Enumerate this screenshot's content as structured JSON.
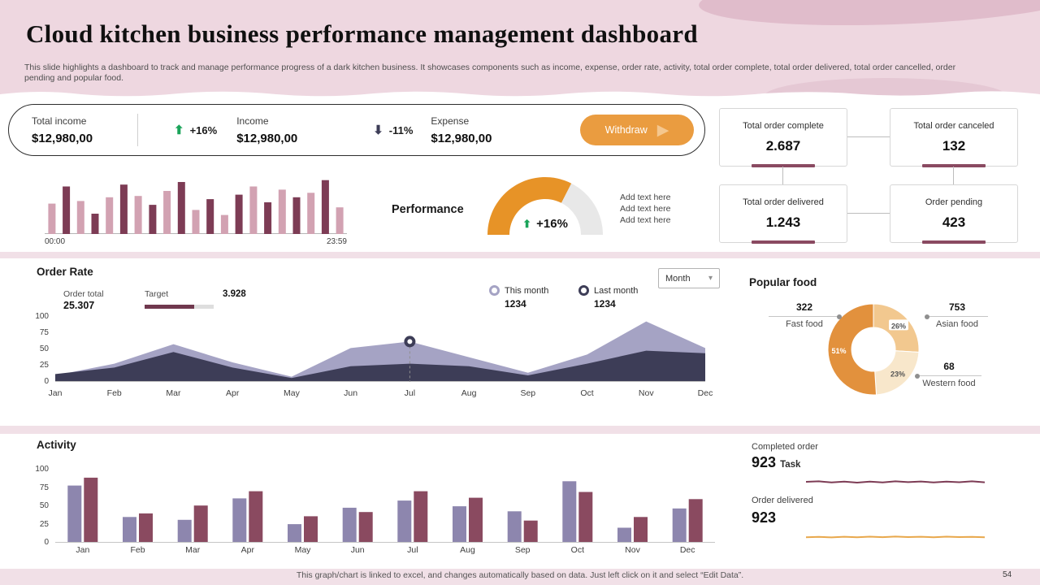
{
  "page": {
    "title": "Cloud kitchen business performance management dashboard",
    "subtitle": "This slide highlights a dashboard to track and manage performance progress of a dark kitchen business. It showcases components such as income, expense, order rate, activity, total order complete, total order delivered, total order cancelled, order pending and popular food.",
    "footer_note": "This graph/chart is linked to excel, and changes automatically based on data. Just left click on it and select “Edit Data”.",
    "page_number": "54"
  },
  "colors": {
    "bg_pink": "#f1e0e7",
    "accent_maroon": "#8a4a61",
    "accent_orange": "#ea9c40",
    "accent_green": "#1ba45a",
    "accent_navy": "#3d3d57",
    "accent_lavender": "#a5a3c4",
    "accent_purple": "#8d86ae"
  },
  "income_bar": {
    "total_income_label": "Total income",
    "total_income_value": "$12,980,00",
    "income_change": "+16%",
    "income_label": "Income",
    "income_value": "$12,980,00",
    "expense_change": "-11%",
    "expense_label": "Expense",
    "expense_value": "$12,980,00",
    "withdraw_label": "Withdraw"
  },
  "performance": {
    "add_text": [
      "Add text here",
      "Add text here",
      "Add text here"
    ]
  },
  "order_cards": [
    {
      "label": "Total order complete",
      "value": "2.687"
    },
    {
      "label": "Total order canceled",
      "value": "132"
    },
    {
      "label": "Total order delivered",
      "value": "1.243"
    },
    {
      "label": "Order pending",
      "value": "423"
    }
  ],
  "order_rate": {
    "title": "Order Rate",
    "order_total_label": "Order total",
    "order_total_value": "25.307",
    "target_label": "Target",
    "target_value": "3.928",
    "target_progress_pct": 72,
    "legend": [
      {
        "label": "This month",
        "value": "1234"
      },
      {
        "label": "Last month",
        "value": "1234"
      }
    ],
    "dropdown_value": "Month"
  },
  "popular_food": {
    "title": "Popular food",
    "callouts": [
      {
        "value": "322",
        "label": "Fast food"
      },
      {
        "value": "753",
        "label": "Asian food"
      },
      {
        "value": "68",
        "label": "Western food"
      }
    ]
  },
  "activity": {
    "title": "Activity",
    "completed_label": "Completed order",
    "completed_value": "923",
    "completed_unit": "Task",
    "delivered_label": "Order delivered",
    "delivered_value": "923"
  },
  "chart_data": [
    {
      "id": "hourly_sales",
      "type": "bar",
      "x_range": [
        "00:00",
        "23:59"
      ],
      "ylim": [
        0,
        100
      ],
      "values": [
        48,
        75,
        52,
        32,
        58,
        78,
        60,
        46,
        68,
        82,
        38,
        55,
        30,
        62,
        75,
        50,
        70,
        58,
        65,
        85,
        42
      ],
      "bar_colors": [
        "#d2a2b2",
        "#7d3c55"
      ]
    },
    {
      "id": "performance_gauge",
      "type": "gauge",
      "label": "Performance",
      "value_display": "+16%",
      "fill_fraction": 0.65,
      "fill_color": "#e79327",
      "track_color": "#e8e8e8"
    },
    {
      "id": "order_rate",
      "type": "area",
      "x": [
        "Jan",
        "Feb",
        "Mar",
        "Apr",
        "May",
        "Jun",
        "Jul",
        "Aug",
        "Sep",
        "Oct",
        "Nov",
        "Dec"
      ],
      "ylim": [
        0,
        100
      ],
      "yticks": [
        100,
        75,
        50,
        25,
        0
      ],
      "series": [
        {
          "name": "This month",
          "color": "#a5a3c4",
          "values": [
            10,
            28,
            58,
            30,
            8,
            52,
            62,
            38,
            14,
            42,
            93,
            52
          ]
        },
        {
          "name": "Last month",
          "color": "#3d3d57",
          "values": [
            12,
            22,
            46,
            22,
            6,
            24,
            28,
            24,
            10,
            28,
            48,
            44
          ]
        }
      ],
      "marker": {
        "x_index": 6,
        "value": 62
      }
    },
    {
      "id": "popular_food",
      "type": "pie",
      "title": "Popular food",
      "slices": [
        {
          "label": "Asian food",
          "value": 753,
          "pct": 26,
          "color": "#f2c88f",
          "pct_text_color": "#555555",
          "chip": true
        },
        {
          "label": "Western food",
          "value": 68,
          "pct": 23,
          "color": "#f8e7cb",
          "pct_text_color": "#555555",
          "chip": false
        },
        {
          "label": "Fast food",
          "value": 322,
          "pct": 51,
          "color": "#e2913d",
          "pct_text_color": "#ffffff",
          "chip": false
        }
      ]
    },
    {
      "id": "activity",
      "type": "bar",
      "categories": [
        "Jan",
        "Feb",
        "Mar",
        "Apr",
        "May",
        "Jun",
        "Jul",
        "Aug",
        "Sep",
        "Oct",
        "Nov",
        "Dec"
      ],
      "ylim": [
        0,
        100
      ],
      "yticks": [
        100,
        75,
        50,
        25,
        0
      ],
      "series": [
        {
          "name": "series_purple",
          "color": "#8d86ae",
          "values": [
            80,
            36,
            32,
            62,
            26,
            49,
            59,
            51,
            44,
            86,
            21,
            48
          ]
        },
        {
          "name": "series_maroon",
          "color": "#8a4a60",
          "values": [
            91,
            41,
            52,
            72,
            37,
            43,
            72,
            63,
            31,
            71,
            36,
            61
          ]
        }
      ]
    },
    {
      "id": "completed_order_trend",
      "type": "line",
      "color": "#7d3c55",
      "values": [
        58,
        63,
        52,
        60,
        50,
        60,
        52,
        63,
        55,
        62,
        52,
        60,
        54,
        63,
        53
      ]
    },
    {
      "id": "order_delivered_trend",
      "type": "line",
      "color": "#e8a84c",
      "values": [
        48,
        53,
        46,
        54,
        48,
        55,
        49,
        56,
        50,
        54,
        48,
        55,
        50,
        53,
        48
      ]
    }
  ]
}
